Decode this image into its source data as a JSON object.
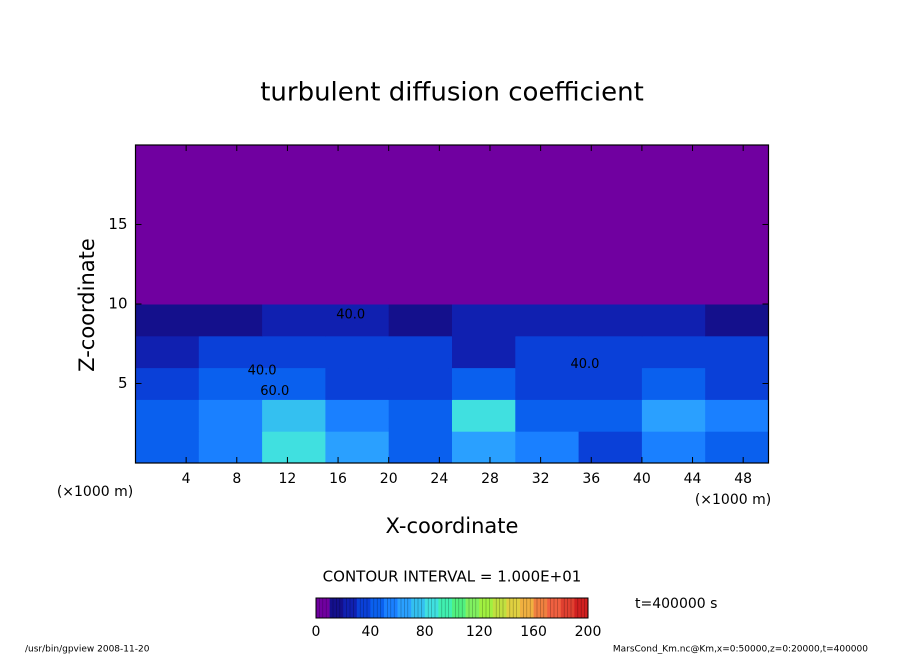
{
  "chart_data": {
    "type": "contour",
    "title": "turbulent diffusion coefficient",
    "x_label": "X-coordinate",
    "y_label": "Z-coordinate",
    "x_unit": "(×1000 m)",
    "y_unit": "(×1000 m)",
    "xlim": [
      0,
      50
    ],
    "ylim": [
      0,
      20
    ],
    "xticks": [
      4,
      8,
      12,
      16,
      20,
      24,
      28,
      32,
      36,
      40,
      44,
      48
    ],
    "yticks": [
      5,
      10,
      15
    ],
    "field": {
      "x_edges": [
        0,
        5,
        10,
        15,
        20,
        25,
        30,
        35,
        40,
        45,
        50
      ],
      "z_edges": [
        0,
        2,
        4,
        6,
        8,
        10,
        20
      ],
      "values": [
        [
          40,
          50,
          80,
          60,
          40,
          60,
          50,
          30,
          50,
          40
        ],
        [
          40,
          50,
          70,
          50,
          40,
          80,
          40,
          40,
          60,
          50
        ],
        [
          30,
          40,
          40,
          30,
          30,
          40,
          30,
          30,
          40,
          30
        ],
        [
          20,
          30,
          30,
          30,
          30,
          20,
          30,
          30,
          30,
          30
        ],
        [
          10,
          10,
          20,
          20,
          10,
          20,
          20,
          20,
          20,
          10
        ],
        [
          0,
          0,
          0,
          0,
          0,
          0,
          0,
          0,
          0,
          0
        ]
      ]
    },
    "contour_labels": [
      {
        "text": "40.0",
        "x": 10,
        "z": 5.8
      },
      {
        "text": "60.0",
        "x": 11,
        "z": 4.5
      },
      {
        "text": "40.0",
        "x": 17,
        "z": 9.3
      },
      {
        "text": "40.0",
        "x": 35.5,
        "z": 6.2
      }
    ],
    "contour_interval_text": "CONTOUR INTERVAL = 1.000E+01",
    "colorbar": {
      "lim": [
        0,
        200
      ],
      "ticks": [
        0,
        40,
        80,
        120,
        160,
        200
      ],
      "step": 10,
      "colors": [
        "#7000a0",
        "#14108c",
        "#1020b0",
        "#0a40d8",
        "#0a60ee",
        "#1a80ff",
        "#2aa0ff",
        "#34c0f0",
        "#40e0e0",
        "#40f0b0",
        "#50f080",
        "#80f060",
        "#a0f040",
        "#c0e040",
        "#e0d040",
        "#f0b040",
        "#f08040",
        "#f06040",
        "#e04030",
        "#d02020"
      ]
    },
    "time_label": "t=400000 s",
    "footer_left": "/usr/bin/gpview  2008-11-20",
    "footer_right": "MarsCond_Km.nc@Km,x=0:50000,z=0:20000,t=400000"
  }
}
